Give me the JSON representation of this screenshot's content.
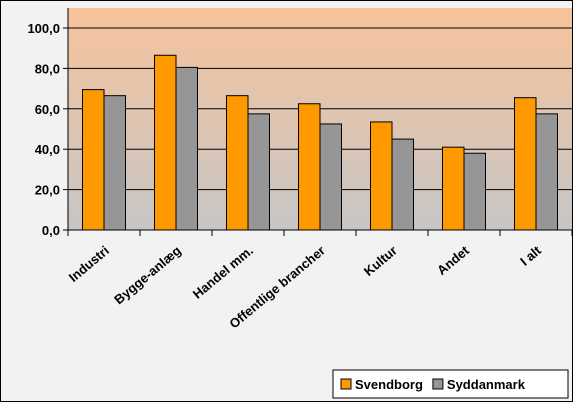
{
  "chart_data": {
    "type": "bar",
    "categories": [
      "Industri",
      "Bygge-anlæg",
      "Handel mm.",
      "Offentlige brancher",
      "Kultur",
      "Andet",
      "I alt"
    ],
    "series": [
      {
        "name": "Svendborg",
        "color": "#ff9900",
        "values": [
          69.5,
          86.5,
          66.5,
          62.5,
          53.5,
          41.0,
          65.5
        ]
      },
      {
        "name": "Syddanmark",
        "color": "#969696",
        "values": [
          66.5,
          80.5,
          57.5,
          52.5,
          45.0,
          38.0,
          57.5
        ]
      }
    ],
    "ylim": [
      0,
      100
    ],
    "yticks": [
      {
        "value": 0,
        "label": "0,0"
      },
      {
        "value": 20,
        "label": "20,0"
      },
      {
        "value": 40,
        "label": "40,0"
      },
      {
        "value": 60,
        "label": "60,0"
      },
      {
        "value": 80,
        "label": "80,0"
      },
      {
        "value": 100,
        "label": "100,0"
      }
    ],
    "grid": true,
    "legend": "bottom-right"
  }
}
